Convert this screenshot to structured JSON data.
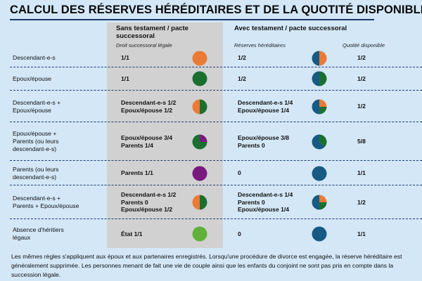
{
  "title": "CALCUL DES RÉSERVES HÉRÉDITAIRES ET DE LA QUOTITÉ DISPONIBLE",
  "headers": {
    "col1_line1": "Sans testament / pacte",
    "col1_line2": "successoral",
    "col1_sub": "Droit successoral légale",
    "col2": "Avec testament / pacte successoral",
    "col2_sub": "Réserves héréditaires",
    "col3_sub": "Quotité disponible"
  },
  "colors": {
    "orange": "#ea7a35",
    "dark_green": "#1b6f2e",
    "purple": "#7a1a7e",
    "light_green": "#5fb139",
    "blue": "#175a84",
    "background": "#d3e7f7",
    "grey_column": "#d1d1d1",
    "rule": "#1b3a6b"
  },
  "rows": [
    {
      "label": [
        "Descendant-e-s"
      ],
      "legal": [
        "1/1"
      ],
      "legal_pie": [
        {
          "color": "orange",
          "share": 1
        }
      ],
      "reserves": [
        "1/2"
      ],
      "reserves_pie": [
        {
          "color": "orange",
          "share": 0.5
        },
        {
          "color": "blue",
          "share": 0.5
        }
      ],
      "quotite": "1/2"
    },
    {
      "label": [
        "Epoux/épouse"
      ],
      "legal": [
        "1/1"
      ],
      "legal_pie": [
        {
          "color": "dark_green",
          "share": 1
        }
      ],
      "reserves": [
        "1/2"
      ],
      "reserves_pie": [
        {
          "color": "dark_green",
          "share": 0.5
        },
        {
          "color": "blue",
          "share": 0.5
        }
      ],
      "quotite": "1/2"
    },
    {
      "label": [
        "Descendant-e-s +",
        "Epoux/épouse"
      ],
      "legal": [
        "Descendant-e-s 1/2",
        "Epoux/épouse 1/2"
      ],
      "legal_pie": [
        {
          "color": "dark_green",
          "share": 0.5
        },
        {
          "color": "orange",
          "share": 0.5
        }
      ],
      "reserves": [
        "Descendant-e-s 1/4",
        "Epoux/épouse 1/4"
      ],
      "reserves_pie": [
        {
          "color": "orange",
          "share": 0.25
        },
        {
          "color": "dark_green",
          "share": 0.25
        },
        {
          "color": "blue",
          "share": 0.5
        }
      ],
      "quotite": "1/2"
    },
    {
      "label": [
        "Epoux/épouse  +",
        "Parents (ou leurs",
        "descendant-e-s)"
      ],
      "legal": [
        "Epoux/épouse 3/4",
        "Parents 1/4"
      ],
      "legal_pie": [
        {
          "color": "purple",
          "share": 0.25
        },
        {
          "color": "dark_green",
          "share": 0.75
        }
      ],
      "reserves": [
        "Epoux/épouse 3/8",
        "Parents 0"
      ],
      "reserves_pie": [
        {
          "color": "dark_green",
          "share": 0.375
        },
        {
          "color": "blue",
          "share": 0.625
        }
      ],
      "quotite": "5/8"
    },
    {
      "label": [
        "Parents (ou leurs",
        "descendant-e-s)"
      ],
      "legal": [
        "Parents 1/1"
      ],
      "legal_pie": [
        {
          "color": "purple",
          "share": 1
        }
      ],
      "reserves": [
        "0"
      ],
      "reserves_pie": [
        {
          "color": "blue",
          "share": 1
        }
      ],
      "quotite": "1/1"
    },
    {
      "label": [
        "Descendant-e-s +",
        "Parents + Epoux/épouse"
      ],
      "legal": [
        "Descendant-e-s 1/2",
        "Parents 0",
        "Epoux/épouse 1/2"
      ],
      "legal_pie": [
        {
          "color": "dark_green",
          "share": 0.5
        },
        {
          "color": "orange",
          "share": 0.5
        }
      ],
      "reserves": [
        "Descendant-e-s 1/4",
        "Parents 0",
        "Epoux/épouse 1/4"
      ],
      "reserves_pie": [
        {
          "color": "orange",
          "share": 0.25
        },
        {
          "color": "dark_green",
          "share": 0.25
        },
        {
          "color": "blue",
          "share": 0.5
        }
      ],
      "quotite": "1/2"
    },
    {
      "label": [
        "Absence d'héritiers",
        "légaux"
      ],
      "legal": [
        "État 1/1"
      ],
      "legal_pie": [
        {
          "color": "light_green",
          "share": 1
        }
      ],
      "reserves": [
        "0"
      ],
      "reserves_pie": [
        {
          "color": "blue",
          "share": 1
        }
      ],
      "quotite": "1/1"
    }
  ],
  "footnote": "Les mêmes règles s'appliquent aux époux et aux partenaires enregistrés. Lorsqu'une procédure de divorce est engagée, la réserve héréditaire est généralement supprimée. Les personnes menant de fait une vie de couple ainsi que les enfants du conjoint ne sont pas pris en compte dans la succession légale."
}
